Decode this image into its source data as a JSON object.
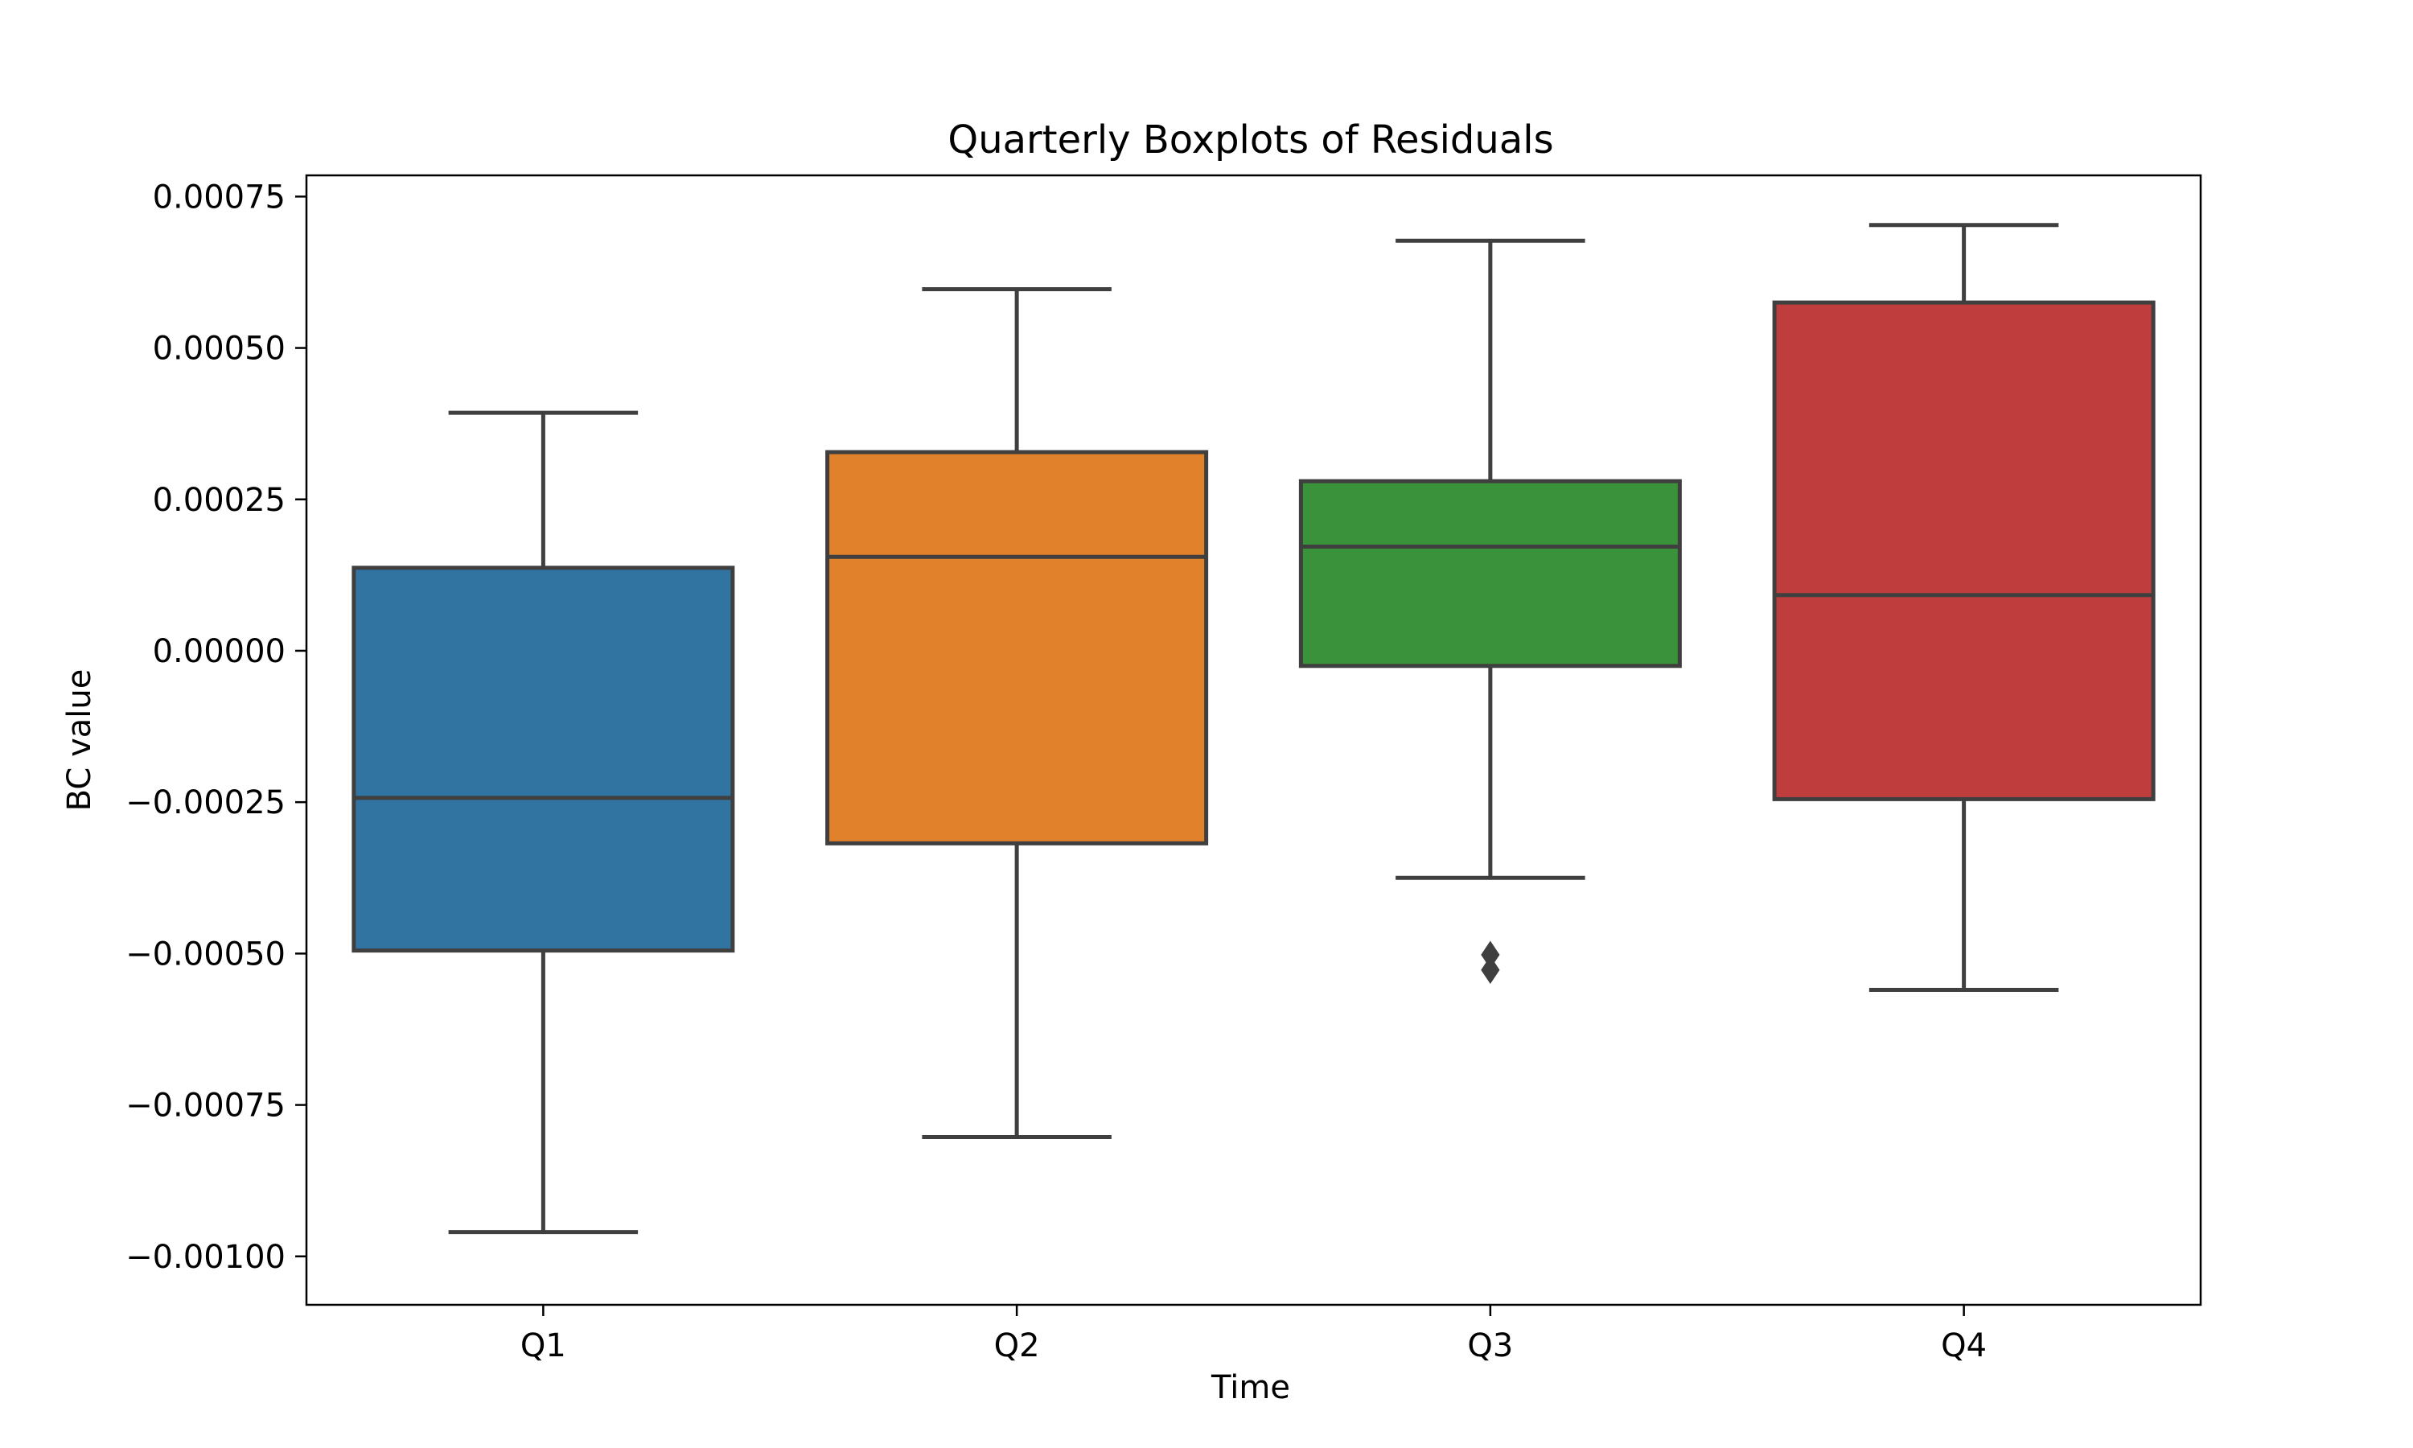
{
  "chart_data": {
    "type": "box",
    "title": "Quarterly Boxplots of Residuals",
    "xlabel": "Time",
    "ylabel": "BC value",
    "ylim": [
      -0.00108,
      0.000785
    ],
    "yticks": [
      0.00075,
      0.0005,
      0.00025,
      0.0,
      -0.00025,
      -0.0005,
      -0.00075,
      -0.001
    ],
    "ytick_labels": [
      "0.00075",
      "0.00050",
      "0.00025",
      "0.00000",
      "−0.00025",
      "−0.00050",
      "−0.00075",
      "−0.00100"
    ],
    "categories": [
      "Q1",
      "Q2",
      "Q3",
      "Q4"
    ],
    "grid": false,
    "boxes": [
      {
        "category": "Q1",
        "whisker_low": -0.00096,
        "q1": -0.000495,
        "median": -0.000243,
        "q3": 0.000137,
        "whisker_high": 0.000393,
        "outliers": [],
        "color": "#3274a1"
      },
      {
        "category": "Q2",
        "whisker_low": -0.000803,
        "q1": -0.000318,
        "median": 0.000155,
        "q3": 0.000328,
        "whisker_high": 0.000597,
        "outliers": [],
        "color": "#e1812c"
      },
      {
        "category": "Q3",
        "whisker_low": -0.000375,
        "q1": -2.5e-05,
        "median": 0.000172,
        "q3": 0.00028,
        "whisker_high": 0.000677,
        "outliers": [
          -0.000502,
          -0.000527
        ],
        "color": "#3a923a"
      },
      {
        "category": "Q4",
        "whisker_low": -0.00056,
        "q1": -0.000245,
        "median": 9.2e-05,
        "q3": 0.000575,
        "whisker_high": 0.000703,
        "outliers": [],
        "color": "#c03d3e"
      }
    ],
    "line_color": "#3f3f3f"
  }
}
